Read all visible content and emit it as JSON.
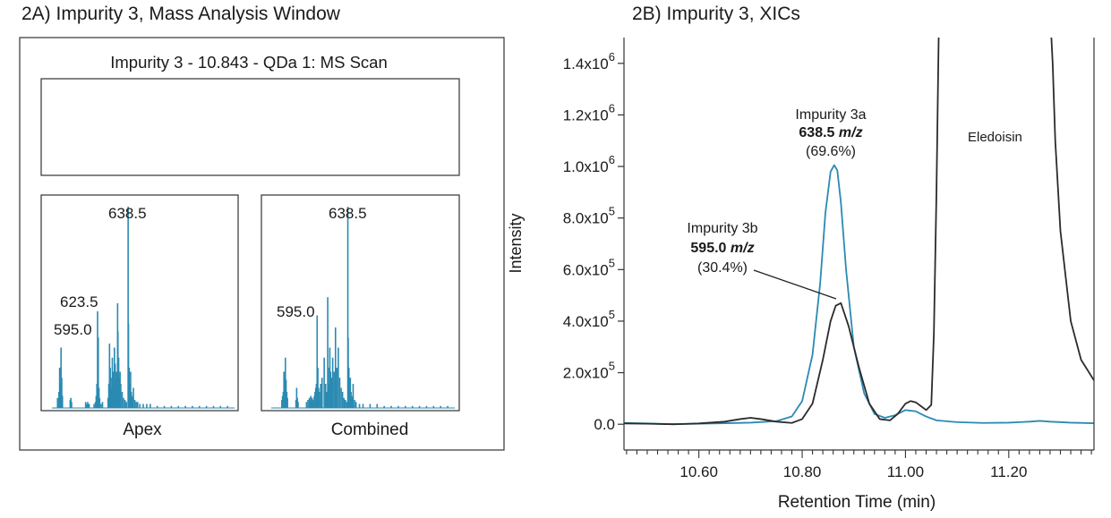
{
  "panel_a": {
    "heading": "2A) Impurity 3, Mass Analysis Window",
    "window_title": "Impurity 3 - 10.843 - QDa 1: MS Scan",
    "spectra": [
      {
        "caption": "Apex",
        "peak_labels": [
          {
            "text": "638.5",
            "mz": 638.5
          },
          {
            "text": "623.5",
            "mz": 623.5
          },
          {
            "text": "595.0",
            "mz": 595.0
          }
        ]
      },
      {
        "caption": "Combined",
        "peak_labels": [
          {
            "text": "638.5",
            "mz": 638.5
          },
          {
            "text": "595.0",
            "mz": 595.0
          }
        ]
      }
    ]
  },
  "panel_b": {
    "heading": "2B) Impurity 3, XICs"
  },
  "colors": {
    "teal": "#2a8ab1",
    "dark": "#2b2b2b",
    "axis": "#333333"
  },
  "chart_data": [
    {
      "type": "bar",
      "title": "Apex",
      "xlabel": "",
      "ylabel": "",
      "note": "mass spectrum, no numeric axes shown",
      "x": [
        538,
        540,
        541,
        542,
        543,
        544,
        545,
        556,
        557,
        558,
        578,
        580,
        581,
        582,
        583,
        590,
        592,
        593,
        594,
        595.0,
        596,
        597,
        598,
        600,
        602,
        610,
        611,
        612,
        613,
        614,
        615,
        616,
        617,
        618,
        619,
        620,
        621,
        622,
        623.5,
        624,
        625,
        626,
        627,
        628,
        630,
        632,
        634,
        636,
        638.5,
        639,
        640,
        641,
        642,
        643,
        644,
        645,
        646,
        648,
        650,
        652,
        655,
        660,
        665,
        670,
        680,
        690,
        700,
        710,
        720,
        730,
        740,
        750,
        760,
        770,
        780
      ],
      "y": [
        5,
        8,
        20,
        12,
        30,
        15,
        6,
        4,
        5,
        3,
        3,
        2,
        3,
        2,
        2,
        2,
        3,
        6,
        12,
        48,
        35,
        10,
        5,
        2,
        3,
        5,
        12,
        32,
        20,
        15,
        10,
        25,
        18,
        12,
        30,
        22,
        15,
        18,
        52,
        38,
        25,
        15,
        18,
        12,
        8,
        5,
        4,
        3,
        100,
        42,
        20,
        12,
        18,
        8,
        6,
        5,
        10,
        4,
        3,
        3,
        2,
        2,
        2,
        2,
        1,
        1,
        1,
        1,
        1,
        1,
        1,
        1,
        1,
        1,
        1
      ]
    },
    {
      "type": "bar",
      "title": "Combined",
      "xlabel": "",
      "ylabel": "",
      "note": "mass spectrum, no numeric axes shown",
      "x": [
        545,
        546,
        547,
        548,
        549,
        550,
        551,
        552,
        553,
        565,
        566,
        567,
        568,
        580,
        582,
        584,
        585,
        586,
        587,
        588,
        589,
        590,
        591,
        592,
        593,
        594,
        595.0,
        596,
        597,
        598,
        600,
        602,
        605,
        607,
        609,
        610,
        611,
        612,
        613,
        614,
        616,
        617,
        619,
        621,
        623,
        625,
        627,
        629,
        631,
        633,
        635,
        637,
        638.5,
        639,
        640,
        641,
        642,
        643,
        644,
        645,
        646,
        648,
        650,
        655,
        660,
        670,
        680,
        690,
        700,
        710,
        720,
        730,
        740,
        750,
        760,
        770,
        780
      ],
      "y": [
        4,
        6,
        8,
        18,
        12,
        25,
        14,
        8,
        5,
        4,
        10,
        5,
        3,
        3,
        4,
        5,
        4,
        6,
        3,
        5,
        4,
        3,
        6,
        8,
        10,
        12,
        46,
        20,
        10,
        8,
        12,
        15,
        25,
        12,
        8,
        55,
        20,
        12,
        30,
        18,
        15,
        25,
        18,
        40,
        20,
        30,
        15,
        10,
        8,
        5,
        4,
        3,
        100,
        35,
        20,
        12,
        15,
        8,
        6,
        5,
        12,
        4,
        3,
        2,
        2,
        2,
        2,
        1,
        1,
        1,
        1,
        1,
        1,
        1,
        1,
        1,
        1
      ]
    },
    {
      "type": "line",
      "title": "",
      "xlabel": "Retention Time (min)",
      "ylabel": "Intensity",
      "xlim": [
        10.455,
        11.365
      ],
      "ylim": [
        -100000.0,
        1500000.0
      ],
      "grid": false,
      "x_ticks": [
        {
          "value": 10.6,
          "label": "10.60"
        },
        {
          "value": 10.8,
          "label": "10.80"
        },
        {
          "value": 11.0,
          "label": "11.00"
        },
        {
          "value": 11.2,
          "label": "11.20"
        }
      ],
      "y_ticks": [
        {
          "value": 0,
          "mant": "0.0",
          "exp": ""
        },
        {
          "value": 200000,
          "mant": "2.0x10",
          "exp": "5"
        },
        {
          "value": 400000,
          "mant": "4.0x10",
          "exp": "5"
        },
        {
          "value": 600000,
          "mant": "6.0x10",
          "exp": "5"
        },
        {
          "value": 800000,
          "mant": "8.0x10",
          "exp": "5"
        },
        {
          "value": 1000000,
          "mant": "1.0x10",
          "exp": "6"
        },
        {
          "value": 1200000,
          "mant": "1.2x10",
          "exp": "6"
        },
        {
          "value": 1400000,
          "mant": "1.4x10",
          "exp": "6"
        }
      ],
      "annotations": {
        "impurity_3a": {
          "line1": "Impurity 3a",
          "mz_value": "638.5",
          "mz_unit": "m/z",
          "line3": "(69.6%)"
        },
        "impurity_3b": {
          "line1": "Impurity 3b",
          "mz_value": "595.0",
          "mz_unit": "m/z",
          "line3": "(30.4%)"
        },
        "eledoisin": {
          "text": "Eledoisin"
        }
      },
      "series": [
        {
          "color": "#2a8ab1",
          "x": [
            10.455,
            10.5,
            10.55,
            10.6,
            10.65,
            10.7,
            10.75,
            10.78,
            10.8,
            10.82,
            10.835,
            10.845,
            10.855,
            10.862,
            10.868,
            10.875,
            10.885,
            10.9,
            10.92,
            10.94,
            10.96,
            10.98,
            11.0,
            11.02,
            11.04,
            11.06,
            11.1,
            11.15,
            11.2,
            11.24,
            11.26,
            11.28,
            11.32,
            11.365
          ],
          "y": [
            5000,
            3000,
            0,
            2000,
            4000,
            6000,
            12000,
            30000,
            90000,
            270000,
            550000,
            820000,
            980000,
            1005000,
            985000,
            860000,
            600000,
            300000,
            120000,
            40000,
            25000,
            35000,
            55000,
            50000,
            30000,
            15000,
            8000,
            5000,
            6000,
            10000,
            13000,
            10000,
            6000,
            4000
          ]
        },
        {
          "color": "#2b2b2b",
          "x": [
            10.455,
            10.5,
            10.55,
            10.6,
            10.65,
            10.68,
            10.7,
            10.72,
            10.75,
            10.78,
            10.8,
            10.82,
            10.84,
            10.855,
            10.865,
            10.875,
            10.89,
            10.91,
            10.93,
            10.95,
            10.97,
            10.985,
            11.0,
            11.01,
            11.02,
            11.03,
            11.04,
            11.05,
            11.055,
            11.06,
            11.065,
            11.08,
            11.1,
            11.2,
            11.28,
            11.285,
            11.29,
            11.3,
            11.32,
            11.34,
            11.365
          ],
          "y": [
            3000,
            2000,
            0,
            3000,
            10000,
            20000,
            25000,
            20000,
            10000,
            5000,
            20000,
            80000,
            250000,
            400000,
            460000,
            470000,
            380000,
            220000,
            80000,
            20000,
            15000,
            40000,
            80000,
            90000,
            85000,
            70000,
            55000,
            75000,
            350000,
            900000,
            1600000,
            1600000,
            1600000,
            1600000,
            1600000,
            1400000,
            1100000,
            750000,
            400000,
            250000,
            170000
          ]
        }
      ]
    }
  ]
}
